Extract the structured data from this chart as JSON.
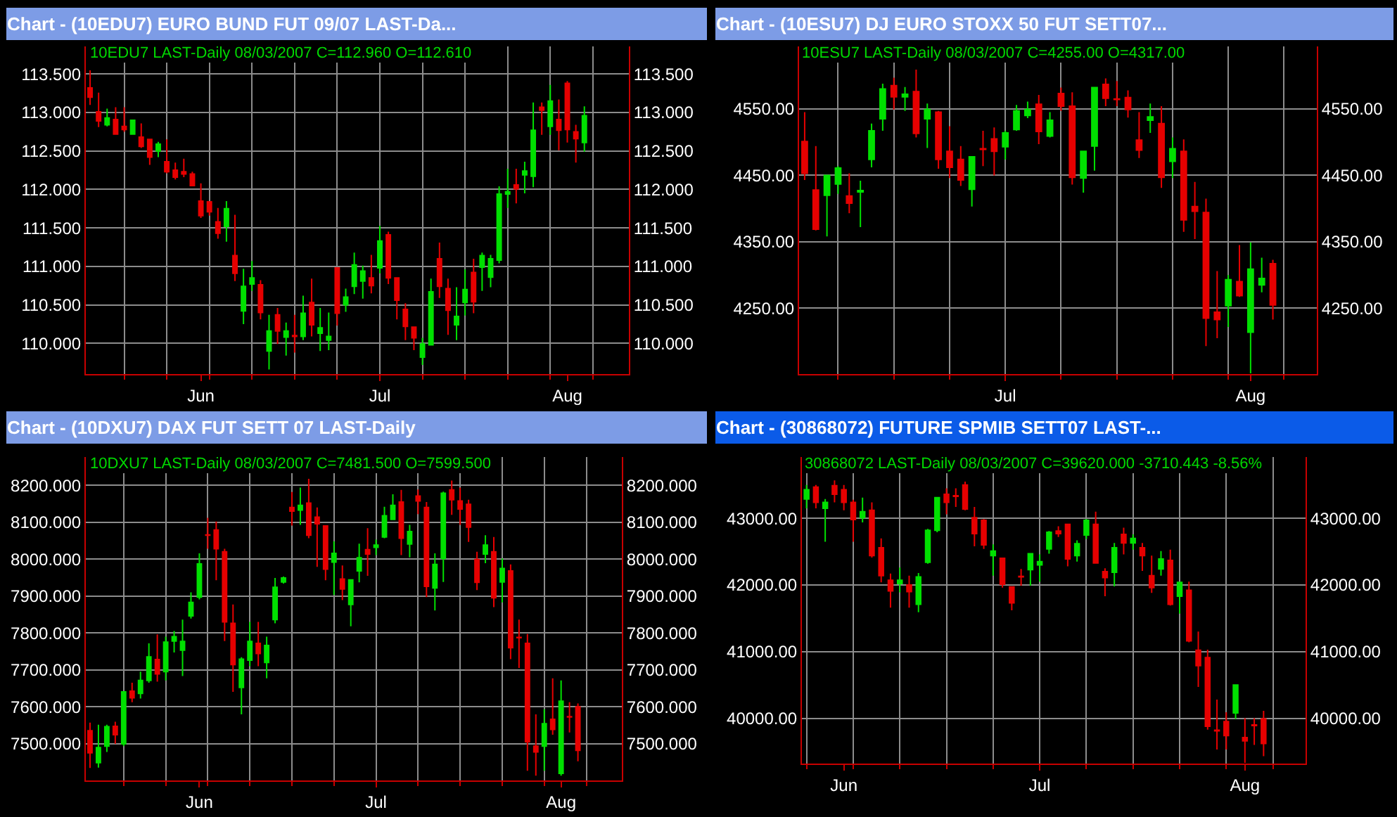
{
  "chart_data": [
    {
      "type": "candlestick",
      "title": "Chart - (10EDU7) EURO BUND FUT 09/07 LAST-Da...",
      "subtitle": "10EDU7 LAST-Daily 08/03/2007 C=112.960 O=112.610",
      "categories": [
        null,
        null,
        null,
        null,
        null,
        null,
        null,
        null,
        null,
        null,
        null,
        null,
        null,
        "Jun",
        null,
        null,
        null,
        null,
        null,
        null,
        null,
        null,
        null,
        null,
        null,
        null,
        null,
        null,
        null,
        null,
        null,
        null,
        null,
        null,
        "Jul",
        null,
        null,
        null,
        null,
        null,
        null,
        null,
        null,
        null,
        null,
        null,
        null,
        null,
        null,
        null,
        null,
        null,
        null,
        null,
        null,
        null,
        "Aug",
        null,
        null
      ],
      "ohlc": [
        [
          113.32,
          113.55,
          113.1,
          113.2
        ],
        [
          113.01,
          113.26,
          112.81,
          112.89
        ],
        [
          112.84,
          113.05,
          112.82,
          112.93
        ],
        [
          112.91,
          113.07,
          112.71,
          112.72
        ],
        [
          112.82,
          113.07,
          112.75,
          112.78
        ],
        [
          112.72,
          112.9,
          112.71,
          112.9
        ],
        [
          112.68,
          112.86,
          112.54,
          112.56
        ],
        [
          112.65,
          112.65,
          112.32,
          112.42
        ],
        [
          112.5,
          112.62,
          112.42,
          112.59
        ],
        [
          112.36,
          112.65,
          112.21,
          112.23
        ],
        [
          112.25,
          112.35,
          112.13,
          112.16
        ],
        [
          112.23,
          112.4,
          112.16,
          112.2
        ],
        [
          112.2,
          112.23,
          112.05,
          112.05
        ],
        [
          111.85,
          112.08,
          111.63,
          111.66
        ],
        [
          111.84,
          111.85,
          111.66,
          111.71
        ],
        [
          111.58,
          111.76,
          111.36,
          111.43
        ],
        [
          111.52,
          111.85,
          111.32,
          111.75
        ],
        [
          111.14,
          111.67,
          110.81,
          110.91
        ],
        [
          110.42,
          110.97,
          110.25,
          110.74
        ],
        [
          110.77,
          111.07,
          110.68,
          110.85
        ],
        [
          110.76,
          110.82,
          110.31,
          110.4
        ],
        [
          109.9,
          110.37,
          109.66,
          110.16
        ],
        [
          110.37,
          110.46,
          109.99,
          110.16
        ],
        [
          110.08,
          110.27,
          109.84,
          110.16
        ],
        [
          110.1,
          110.37,
          109.88,
          110.09
        ],
        [
          110.09,
          110.62,
          110.04,
          110.39
        ],
        [
          110.53,
          110.84,
          110.09,
          110.24
        ],
        [
          110.13,
          110.46,
          109.9,
          110.2
        ],
        [
          110.04,
          110.4,
          109.91,
          110.09
        ],
        [
          110.98,
          110.98,
          110.23,
          110.39
        ],
        [
          110.5,
          110.71,
          110.41,
          110.6
        ],
        [
          110.74,
          111.18,
          110.64,
          111.02
        ],
        [
          110.81,
          111.01,
          110.58,
          110.94
        ],
        [
          110.85,
          111.15,
          110.65,
          110.75
        ],
        [
          110.98,
          111.53,
          110.91,
          111.33
        ],
        [
          111.41,
          111.45,
          110.77,
          110.85
        ],
        [
          110.85,
          110.85,
          110.31,
          110.56
        ],
        [
          110.44,
          110.52,
          110.04,
          110.22
        ],
        [
          110.21,
          110.21,
          109.91,
          110.07
        ],
        [
          109.82,
          110.07,
          109.72,
          109.99
        ],
        [
          109.98,
          110.84,
          109.98,
          110.67
        ],
        [
          111.1,
          111.31,
          110.59,
          110.74
        ],
        [
          110.71,
          110.84,
          110.11,
          110.43
        ],
        [
          110.24,
          110.73,
          110.04,
          110.35
        ],
        [
          110.53,
          110.96,
          110.36,
          110.7
        ],
        [
          110.92,
          111.1,
          110.39,
          110.54
        ],
        [
          110.99,
          111.18,
          110.68,
          111.14
        ],
        [
          110.86,
          111.15,
          110.73,
          111.1
        ],
        [
          111.08,
          112.04,
          111.04,
          111.94
        ],
        [
          111.94,
          112.27,
          111.76,
          111.97
        ],
        [
          112.06,
          112.27,
          111.82,
          112.01
        ],
        [
          112.19,
          112.36,
          111.95,
          112.24
        ],
        [
          112.17,
          113.13,
          112.03,
          112.77
        ],
        [
          113.07,
          113.13,
          112.71,
          113.03
        ],
        [
          112.82,
          113.36,
          112.71,
          113.15
        ],
        [
          112.91,
          113.17,
          112.51,
          112.77
        ],
        [
          113.38,
          113.41,
          112.61,
          112.78
        ],
        [
          112.75,
          112.84,
          112.35,
          112.66
        ],
        [
          112.61,
          113.08,
          112.49,
          112.96
        ]
      ],
      "colors": [
        "#e60000",
        "#e60000",
        "#00e000",
        "#e60000",
        "#e60000",
        "#00e000",
        "#e60000",
        "#e60000",
        "#00e000",
        "#e60000",
        "#e60000",
        "#e60000",
        "#e60000",
        "#e60000",
        "#e60000",
        "#e60000",
        "#00e000",
        "#e60000",
        "#00e000",
        "#00e000",
        "#e60000",
        "#00e000",
        "#e60000",
        "#00e000",
        "#e60000",
        "#00e000",
        "#e60000",
        "#00e000",
        "#00e000",
        "#e60000",
        "#00e000",
        "#00e000",
        "#00e000",
        "#e60000",
        "#00e000",
        "#e60000",
        "#e60000",
        "#e60000",
        "#e60000",
        "#00e000",
        "#00e000",
        "#e60000",
        "#e60000",
        "#00e000",
        "#00e000",
        "#e60000",
        "#00e000",
        "#00e000",
        "#00e000",
        "#00e000",
        "#e60000",
        "#00e000",
        "#00e000",
        "#e60000",
        "#00e000",
        "#e60000",
        "#e60000",
        "#e60000",
        "#00e000"
      ],
      "ylim": [
        109.6,
        113.86
      ],
      "yticks": [
        {
          "value": 110,
          "label": "110.000"
        },
        {
          "value": 110.5,
          "label": "110.500"
        },
        {
          "value": 111,
          "label": "111.000"
        },
        {
          "value": 111.5,
          "label": "111.500"
        },
        {
          "value": 112,
          "label": "112.000"
        },
        {
          "value": 112.5,
          "label": "112.500"
        },
        {
          "value": 113,
          "label": "113.000"
        },
        {
          "value": 113.5,
          "label": "113.500"
        }
      ],
      "y2lim": [
        109.6,
        113.86
      ],
      "y2ticks": [
        {
          "value": 110,
          "label": "110.000"
        },
        {
          "value": 110.5,
          "label": "110.500"
        },
        {
          "value": 111,
          "label": "111.000"
        },
        {
          "value": 111.5,
          "label": "111.500"
        },
        {
          "value": 112,
          "label": "112.000"
        },
        {
          "value": 112.5,
          "label": "112.500"
        },
        {
          "value": 113,
          "label": "113.000"
        },
        {
          "value": 113.5,
          "label": "113.500"
        }
      ],
      "grid": true
    },
    {
      "type": "candlestick",
      "title": "Chart - (10ESU7) DJ EURO STOXX 50 FUT SETT07...",
      "subtitle": "10ESU7 LAST-Daily 08/03/2007 C=4255.00 O=4317.00",
      "categories": [
        null,
        null,
        null,
        null,
        null,
        null,
        null,
        null,
        null,
        null,
        null,
        null,
        null,
        null,
        null,
        null,
        null,
        null,
        "Jul",
        null,
        null,
        null,
        null,
        null,
        null,
        null,
        null,
        null,
        null,
        null,
        null,
        null,
        null,
        null,
        null,
        null,
        null,
        null,
        null,
        null,
        "Aug",
        null,
        null
      ],
      "ohlc": [
        [
          4501,
          4545,
          4443,
          4453
        ],
        [
          4428,
          4494,
          4367,
          4369
        ],
        [
          4420,
          4450,
          4358,
          4450
        ],
        [
          4437,
          4464,
          4422,
          4461
        ],
        [
          4419,
          4453,
          4393,
          4408
        ],
        [
          4425,
          4442,
          4372,
          4427
        ],
        [
          4474,
          4528,
          4462,
          4517
        ],
        [
          4535,
          4588,
          4517,
          4580
        ],
        [
          4585,
          4597,
          4549,
          4568
        ],
        [
          4568,
          4583,
          4547,
          4572
        ],
        [
          4576,
          4609,
          4507,
          4513
        ],
        [
          4535,
          4558,
          4491,
          4549
        ],
        [
          4545,
          4547,
          4460,
          4474
        ],
        [
          4486,
          4524,
          4446,
          4462
        ],
        [
          4474,
          4494,
          4434,
          4443
        ],
        [
          4429,
          4478,
          4403,
          4478
        ],
        [
          4490,
          4517,
          4464,
          4489
        ],
        [
          4505,
          4522,
          4450,
          4486
        ],
        [
          4493,
          4517,
          4474,
          4514
        ],
        [
          4519,
          4556,
          4517,
          4547
        ],
        [
          4540,
          4561,
          4536,
          4549
        ],
        [
          4557,
          4571,
          4497,
          4516
        ],
        [
          4509,
          4545,
          4507,
          4533
        ],
        [
          4573,
          4582,
          4547,
          4554
        ],
        [
          4554,
          4575,
          4436,
          4447
        ],
        [
          4446,
          4486,
          4424,
          4486
        ],
        [
          4494,
          4583,
          4457,
          4582
        ],
        [
          4587,
          4596,
          4554,
          4566
        ],
        [
          4565,
          4592,
          4554,
          4564
        ],
        [
          4567,
          4578,
          4537,
          4549
        ],
        [
          4503,
          4545,
          4476,
          4488
        ],
        [
          4533,
          4558,
          4514,
          4538
        ],
        [
          4528,
          4554,
          4431,
          4447
        ],
        [
          4471,
          4507,
          4446,
          4490
        ],
        [
          4486,
          4504,
          4365,
          4383
        ],
        [
          4403,
          4440,
          4354,
          4396
        ],
        [
          4394,
          4415,
          4193,
          4235
        ],
        [
          4244,
          4306,
          4205,
          4233
        ],
        [
          4254,
          4300,
          4222,
          4293
        ],
        [
          4290,
          4345,
          4267,
          4269
        ],
        [
          4214,
          4349,
          4152,
          4309
        ],
        [
          4285,
          4326,
          4274,
          4295
        ],
        [
          4317,
          4323,
          4233,
          4255
        ]
      ],
      "colors": [
        "#e60000",
        "#e60000",
        "#00e000",
        "#00e000",
        "#e60000",
        "#00e000",
        "#00e000",
        "#00e000",
        "#e60000",
        "#00e000",
        "#e60000",
        "#00e000",
        "#e60000",
        "#e60000",
        "#e60000",
        "#00e000",
        "#e60000",
        "#e60000",
        "#00e000",
        "#00e000",
        "#00e000",
        "#e60000",
        "#00e000",
        "#e60000",
        "#e60000",
        "#00e000",
        "#00e000",
        "#e60000",
        "#e60000",
        "#e60000",
        "#e60000",
        "#00e000",
        "#e60000",
        "#00e000",
        "#e60000",
        "#e60000",
        "#e60000",
        "#e60000",
        "#00e000",
        "#e60000",
        "#00e000",
        "#00e000",
        "#e60000"
      ],
      "ylim": [
        4151,
        4644
      ],
      "yticks": [
        {
          "value": 4250,
          "label": "4250.00"
        },
        {
          "value": 4350,
          "label": "4350.00"
        },
        {
          "value": 4450,
          "label": "4450.00"
        },
        {
          "value": 4550,
          "label": "4550.00"
        }
      ],
      "y2lim": [
        4151,
        4644
      ],
      "y2ticks": [
        {
          "value": 4250,
          "label": "4250.00"
        },
        {
          "value": 4350,
          "label": "4350.00"
        },
        {
          "value": 4450,
          "label": "4450.00"
        },
        {
          "value": 4550,
          "label": "4550.00"
        }
      ],
      "grid": true
    },
    {
      "type": "candlestick",
      "title": "Chart - (10DXU7) DAX FUT SETT 07 LAST-Daily",
      "subtitle": "10DXU7 LAST-Daily 08/03/2007 C=7481.500 O=7599.500",
      "categories": [
        null,
        null,
        null,
        null,
        null,
        null,
        null,
        null,
        null,
        null,
        null,
        null,
        null,
        "Jun",
        null,
        null,
        null,
        null,
        null,
        null,
        null,
        null,
        null,
        null,
        null,
        null,
        null,
        null,
        null,
        null,
        null,
        null,
        null,
        null,
        "Jul",
        null,
        null,
        null,
        null,
        null,
        null,
        null,
        null,
        null,
        null,
        null,
        null,
        null,
        null,
        null,
        null,
        null,
        null,
        null,
        null,
        null,
        "Aug",
        null,
        null
      ],
      "ohlc": [
        [
          7535,
          7557,
          7434,
          7475
        ],
        [
          7448,
          7551,
          7435,
          7489
        ],
        [
          7493,
          7551,
          7477,
          7546
        ],
        [
          7547,
          7559,
          7499,
          7524
        ],
        [
          7499,
          7640,
          7493,
          7640
        ],
        [
          7642,
          7665,
          7612,
          7624
        ],
        [
          7636,
          7695,
          7622,
          7671
        ],
        [
          7671,
          7772,
          7665,
          7735
        ],
        [
          7728,
          7796,
          7668,
          7689
        ],
        [
          7695,
          7790,
          7671,
          7775
        ],
        [
          7778,
          7805,
          7747,
          7790
        ],
        [
          7753,
          7836,
          7683,
          7777
        ],
        [
          7846,
          7910,
          7839,
          7883
        ],
        [
          7897,
          8016,
          7891,
          7987
        ],
        [
          8066,
          8112,
          8028,
          8065
        ],
        [
          8079,
          8102,
          7943,
          8028
        ],
        [
          8020,
          8028,
          7778,
          7830
        ],
        [
          7826,
          7877,
          7640,
          7714
        ],
        [
          7652,
          7734,
          7579,
          7729
        ],
        [
          7726,
          7830,
          7710,
          7777
        ],
        [
          7772,
          7830,
          7710,
          7744
        ],
        [
          7720,
          7790,
          7677,
          7766
        ],
        [
          7836,
          7949,
          7826,
          7924
        ],
        [
          7938,
          7953,
          7934,
          7949
        ],
        [
          8140,
          8182,
          8091,
          8130
        ],
        [
          8133,
          8194,
          8093,
          8146
        ],
        [
          8152,
          8218,
          8057,
          8065
        ],
        [
          8114,
          8140,
          7979,
          8096
        ],
        [
          8090,
          8091,
          7943,
          7973
        ],
        [
          7992,
          8048,
          7903,
          8016
        ],
        [
          7946,
          7983,
          7889,
          7919
        ],
        [
          7877,
          7944,
          7818,
          7944
        ],
        [
          7968,
          8042,
          7937,
          8004
        ],
        [
          8026,
          8084,
          7955,
          8014
        ],
        [
          8032,
          8053,
          8011,
          8038
        ],
        [
          8060,
          8142,
          8057,
          8118
        ],
        [
          8108,
          8176,
          8106,
          8146
        ],
        [
          8155,
          8188,
          8011,
          8057
        ],
        [
          8041,
          8093,
          8005,
          8075
        ],
        [
          8171,
          8189,
          8122,
          8158
        ],
        [
          8140,
          8155,
          7897,
          7926
        ],
        [
          7922,
          8016,
          7861,
          7986
        ],
        [
          8002,
          8183,
          7938,
          8179
        ],
        [
          8188,
          8213,
          8120,
          8161
        ],
        [
          8158,
          8194,
          8093,
          8136
        ],
        [
          8149,
          8161,
          8047,
          8087
        ],
        [
          7999,
          8020,
          7916,
          7937
        ],
        [
          8014,
          8065,
          7989,
          8038
        ],
        [
          8020,
          8060,
          7870,
          7895
        ],
        [
          7938,
          8002,
          7883,
          7975
        ],
        [
          7968,
          7986,
          7729,
          7760
        ],
        [
          7788,
          7836,
          7705,
          7787
        ],
        [
          7772,
          7797,
          7426,
          7505
        ],
        [
          7493,
          7579,
          7413,
          7477
        ],
        [
          7493,
          7593,
          7426,
          7554
        ],
        [
          7566,
          7677,
          7524,
          7538
        ],
        [
          7419,
          7671,
          7413,
          7615
        ],
        [
          7573,
          7612,
          7530,
          7572
        ],
        [
          7599.5,
          7609,
          7452,
          7481.5
        ]
      ],
      "colors": [
        "#e60000",
        "#00e000",
        "#00e000",
        "#e60000",
        "#00e000",
        "#e60000",
        "#00e000",
        "#00e000",
        "#e60000",
        "#00e000",
        "#00e000",
        "#00e000",
        "#00e000",
        "#00e000",
        "#e60000",
        "#e60000",
        "#e60000",
        "#e60000",
        "#00e000",
        "#00e000",
        "#e60000",
        "#00e000",
        "#00e000",
        "#00e000",
        "#e60000",
        "#00e000",
        "#e60000",
        "#e60000",
        "#e60000",
        "#00e000",
        "#e60000",
        "#00e000",
        "#00e000",
        "#e60000",
        "#00e000",
        "#00e000",
        "#00e000",
        "#e60000",
        "#00e000",
        "#e60000",
        "#e60000",
        "#00e000",
        "#00e000",
        "#e60000",
        "#e60000",
        "#e60000",
        "#e60000",
        "#00e000",
        "#e60000",
        "#00e000",
        "#e60000",
        "#e60000",
        "#e60000",
        "#e60000",
        "#00e000",
        "#e60000",
        "#00e000",
        "#e60000",
        "#e60000"
      ],
      "ylim": [
        7400,
        8277
      ],
      "yticks": [
        {
          "value": 7500,
          "label": "7500.000"
        },
        {
          "value": 7600,
          "label": "7600.000"
        },
        {
          "value": 7700,
          "label": "7700.000"
        },
        {
          "value": 7800,
          "label": "7800.000"
        },
        {
          "value": 7900,
          "label": "7900.000"
        },
        {
          "value": 8000,
          "label": "8000.000"
        },
        {
          "value": 8100,
          "label": "8100.000"
        },
        {
          "value": 8200,
          "label": "8200.000"
        }
      ],
      "y2lim": [
        7400,
        8277
      ],
      "y2ticks": [
        {
          "value": 7500,
          "label": "7500.000"
        },
        {
          "value": 7600,
          "label": "7600.000"
        },
        {
          "value": 7700,
          "label": "7700.000"
        },
        {
          "value": 7800,
          "label": "7800.000"
        },
        {
          "value": 7900,
          "label": "7900.000"
        },
        {
          "value": 8000,
          "label": "8000.000"
        },
        {
          "value": 8100,
          "label": "8100.000"
        },
        {
          "value": 8200,
          "label": "8200.000"
        }
      ],
      "grid": true
    },
    {
      "type": "candlestick",
      "title": "Chart - (30868072) FUTURE SPMIB SETT07 LAST-...",
      "subtitle": "30868072 LAST-Daily 08/03/2007 C=39620.000 -3710.443 -8.56%",
      "categories": [
        null,
        null,
        null,
        null,
        "Jun",
        null,
        null,
        null,
        null,
        null,
        null,
        null,
        null,
        null,
        null,
        null,
        null,
        null,
        null,
        null,
        null,
        null,
        null,
        null,
        null,
        "Jul",
        null,
        null,
        null,
        null,
        null,
        null,
        null,
        null,
        null,
        null,
        null,
        null,
        null,
        null,
        null,
        null,
        null,
        null,
        null,
        null,
        null,
        "Aug",
        null,
        null
      ],
      "ohlc": [
        [
          43290,
          43500,
          43150,
          43430
        ],
        [
          43470,
          43500,
          43150,
          43240
        ],
        [
          43150,
          43290,
          42650,
          43240
        ],
        [
          43490,
          43570,
          43240,
          43360
        ],
        [
          43430,
          43500,
          43120,
          43240
        ],
        [
          43240,
          43280,
          42650,
          42980
        ],
        [
          43010,
          43310,
          42940,
          43100
        ],
        [
          43120,
          43240,
          42410,
          42440
        ],
        [
          42560,
          42700,
          42040,
          42140
        ],
        [
          42070,
          42170,
          41660,
          41910
        ],
        [
          42020,
          42260,
          41890,
          42070
        ],
        [
          42000,
          42140,
          41660,
          41900
        ],
        [
          41710,
          42180,
          41590,
          42120
        ],
        [
          42340,
          42840,
          42320,
          42820
        ],
        [
          42820,
          43310,
          42790,
          43310
        ],
        [
          43360,
          43450,
          43060,
          43240
        ],
        [
          43340,
          43450,
          43170,
          43330
        ],
        [
          43500,
          43550,
          43120,
          43140
        ],
        [
          43010,
          43170,
          42580,
          42770
        ],
        [
          42970,
          42990,
          42540,
          42600
        ],
        [
          42440,
          42610,
          42140,
          42510
        ],
        [
          42400,
          42400,
          41960,
          42010
        ],
        [
          41970,
          41970,
          41620,
          41730
        ],
        [
          42130,
          42240,
          41990,
          42120
        ],
        [
          42230,
          42470,
          41990,
          42470
        ],
        [
          42300,
          42460,
          42050,
          42350
        ],
        [
          42540,
          42810,
          42470,
          42790
        ],
        [
          42810,
          42880,
          42720,
          42770
        ],
        [
          42910,
          42920,
          42280,
          42390
        ],
        [
          42440,
          42670,
          42350,
          42620
        ],
        [
          42750,
          42990,
          42690,
          42970
        ],
        [
          42910,
          43100,
          42320,
          42330
        ],
        [
          42200,
          42250,
          41830,
          42110
        ],
        [
          42190,
          42630,
          41980,
          42560
        ],
        [
          42760,
          42860,
          42460,
          42630
        ],
        [
          42630,
          42760,
          42530,
          42700
        ],
        [
          42560,
          42630,
          42210,
          42440
        ],
        [
          42140,
          42440,
          41880,
          41960
        ],
        [
          42240,
          42510,
          42140,
          42390
        ],
        [
          42370,
          42530,
          41690,
          41710
        ],
        [
          41830,
          42050,
          41570,
          42040
        ],
        [
          41920,
          42050,
          41140,
          41160
        ],
        [
          41020,
          41300,
          40470,
          40790
        ],
        [
          40910,
          41030,
          39830,
          39880
        ],
        [
          39820,
          40280,
          39530,
          39810
        ],
        [
          39950,
          40090,
          39530,
          39740
        ],
        [
          40080,
          40510,
          39990,
          40500
        ],
        [
          39710,
          40000,
          39330,
          39660
        ],
        [
          39900,
          40000,
          39600,
          39890
        ],
        [
          39990,
          40110,
          39430,
          39620
        ]
      ],
      "colors": [
        "#00e000",
        "#e60000",
        "#00e000",
        "#e60000",
        "#e60000",
        "#e60000",
        "#00e000",
        "#e60000",
        "#e60000",
        "#e60000",
        "#00e000",
        "#e60000",
        "#00e000",
        "#00e000",
        "#00e000",
        "#e60000",
        "#e60000",
        "#e60000",
        "#e60000",
        "#e60000",
        "#00e000",
        "#e60000",
        "#e60000",
        "#e60000",
        "#00e000",
        "#00e000",
        "#00e000",
        "#e60000",
        "#e60000",
        "#00e000",
        "#00e000",
        "#e60000",
        "#e60000",
        "#00e000",
        "#e60000",
        "#00e000",
        "#e60000",
        "#e60000",
        "#00e000",
        "#e60000",
        "#00e000",
        "#e60000",
        "#e60000",
        "#e60000",
        "#e60000",
        "#e60000",
        "#00e000",
        "#e60000",
        "#e60000",
        "#e60000"
      ],
      "ylim": [
        39320,
        43920
      ],
      "yticks": [
        {
          "value": 40000,
          "label": "40000.00"
        },
        {
          "value": 41000,
          "label": "41000.00"
        },
        {
          "value": 42000,
          "label": "42000.00"
        },
        {
          "value": 43000,
          "label": "43000.00"
        }
      ],
      "y2lim": [
        39320,
        43920
      ],
      "y2ticks": [
        {
          "value": 40000,
          "label": "40000.00"
        },
        {
          "value": 41000,
          "label": "41000.00"
        },
        {
          "value": 42000,
          "label": "42000.00"
        },
        {
          "value": 43000,
          "label": "43000.00"
        }
      ],
      "grid": true
    }
  ]
}
